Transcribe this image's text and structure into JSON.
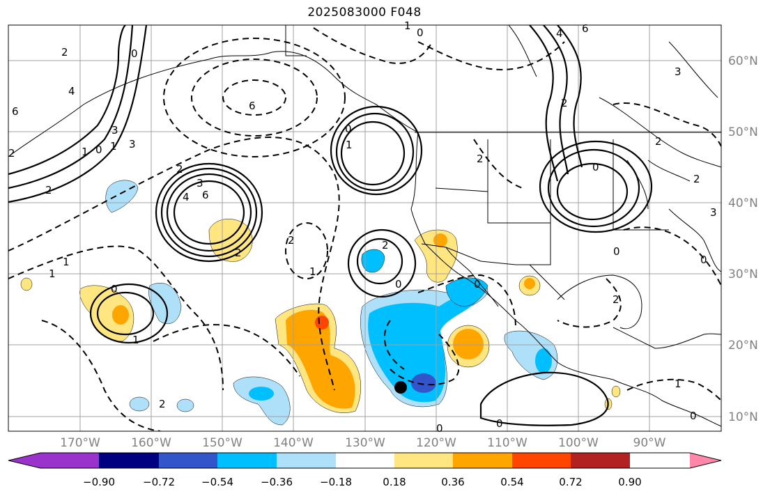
{
  "title": "2025083000 F048",
  "lat_labels": [
    "60°N",
    "50°N",
    "40°N",
    "30°N",
    "20°N",
    "10°N"
  ],
  "lon_labels": [
    "170°W",
    "160°W",
    "150°W",
    "140°W",
    "130°W",
    "120°W",
    "110°W",
    "100°W",
    "90°W"
  ],
  "colorbar": {
    "ticks": [
      "−0.90",
      "−0.72",
      "−0.54",
      "−0.36",
      "−0.18",
      "0.18",
      "0.36",
      "0.54",
      "0.72",
      "0.90"
    ],
    "colors": [
      "#9933cc",
      "#000080",
      "#3355cc",
      "#00bfff",
      "#aee0fa",
      "#ffffff",
      "#ffe680",
      "#ffa500",
      "#ff4500",
      "#b22222",
      "#ff88aa"
    ]
  },
  "contour_labels": [
    "0",
    "6",
    "4",
    "1",
    "3",
    "2",
    "0",
    "4",
    "6",
    "2",
    "1",
    "1",
    "0",
    "2",
    "4",
    "3",
    "6",
    "2",
    "2",
    "1",
    "0",
    "1",
    "2",
    "6",
    "3",
    "3",
    "0",
    "2",
    "2",
    "2",
    "2",
    "0",
    "0",
    "0",
    "2",
    "1",
    "1",
    "0",
    "2",
    "1",
    "0",
    "0",
    "3",
    "2",
    "0",
    "0",
    "1"
  ],
  "style": {
    "land_line": "#000000",
    "grid": "#a0a0a0"
  }
}
